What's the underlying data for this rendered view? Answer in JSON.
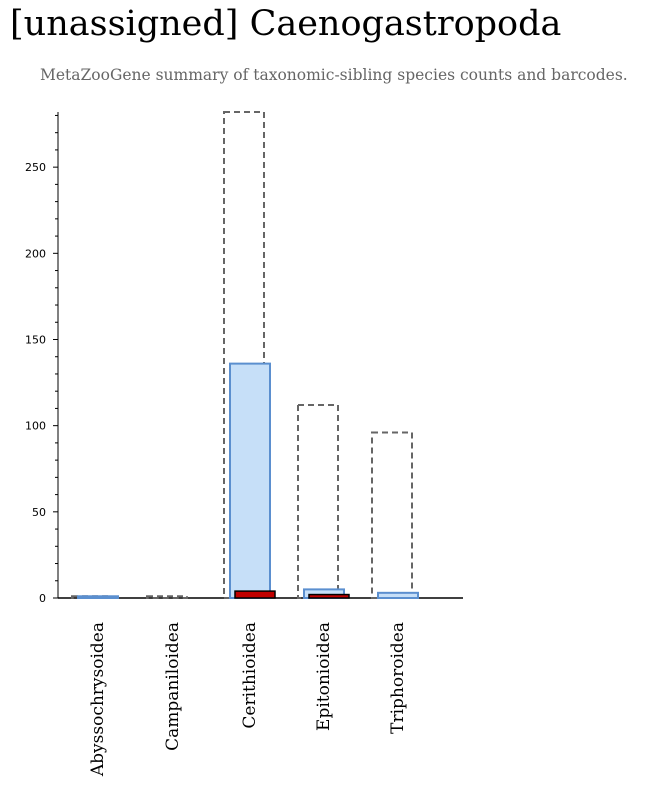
{
  "header": {
    "title": "[unassigned] Caenogastropoda",
    "subtitle": "MetaZooGene summary of taxonomic-sibling species counts and barcodes."
  },
  "chart_data": {
    "type": "bar",
    "title": "[unassigned] Caenogastropoda",
    "subtitle": "MetaZooGene summary of taxonomic-sibling species counts and barcodes.",
    "xlabel": "",
    "ylabel": "",
    "ylim": [
      0,
      282
    ],
    "yticks": [
      0,
      50,
      100,
      150,
      200,
      250
    ],
    "categories": [
      "Abyssochrysoidea",
      "Campaniloidea",
      "Cerithioidea",
      "Epitonioidea",
      "Triphoroidea"
    ],
    "series": [
      {
        "style": "dashed-outline",
        "color": "#666666",
        "values": [
          1,
          1,
          282,
          112,
          96
        ]
      },
      {
        "style": "filled",
        "color": "#c6dff8",
        "stroke": "#5b8fcf",
        "values": [
          1,
          0,
          136,
          5,
          3
        ]
      },
      {
        "style": "filled",
        "color": "#c00000",
        "stroke": "#000000",
        "values": [
          0,
          0,
          4,
          2,
          0
        ]
      }
    ],
    "grid": false,
    "legend": "none"
  }
}
